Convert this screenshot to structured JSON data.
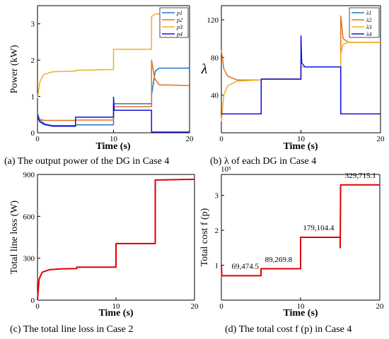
{
  "chart_data": [
    {
      "id": "a",
      "type": "line",
      "caption": "(a) The output power of the DG in Case 4",
      "xlabel": "Time (s)",
      "ylabel": "Power (kW)",
      "xlim": [
        0,
        20
      ],
      "ylim": [
        0,
        3.5
      ],
      "xticks": [
        0,
        10,
        20
      ],
      "yticks": [
        0,
        1,
        2,
        3
      ],
      "legend": {
        "position": "top-right",
        "labels": [
          "p1",
          "p2",
          "p3",
          "p4"
        ]
      },
      "series": [
        {
          "name": "p1",
          "color": "#1f77d0",
          "points": [
            [
              0,
              0.55
            ],
            [
              0.3,
              0.35
            ],
            [
              1,
              0.24
            ],
            [
              2,
              0.2
            ],
            [
              5,
              0.2
            ],
            [
              5,
              0.22
            ],
            [
              10,
              0.22
            ],
            [
              10,
              0.8
            ],
            [
              15,
              0.8
            ],
            [
              15,
              1.05
            ],
            [
              15.5,
              1.7
            ],
            [
              16,
              1.78
            ],
            [
              20,
              1.78
            ]
          ]
        },
        {
          "name": "p2",
          "color": "#e07020",
          "points": [
            [
              0,
              0.45
            ],
            [
              0.4,
              0.36
            ],
            [
              1,
              0.34
            ],
            [
              5,
              0.34
            ],
            [
              5,
              0.35
            ],
            [
              10,
              0.35
            ],
            [
              10,
              0.72
            ],
            [
              15,
              0.72
            ],
            [
              15,
              2.0
            ],
            [
              15.4,
              1.5
            ],
            [
              16,
              1.32
            ],
            [
              20,
              1.3
            ]
          ]
        },
        {
          "name": "p3",
          "color": "#f0b020",
          "points": [
            [
              0,
              0.95
            ],
            [
              0.3,
              1.4
            ],
            [
              0.8,
              1.6
            ],
            [
              2,
              1.68
            ],
            [
              5,
              1.7
            ],
            [
              5,
              1.72
            ],
            [
              10,
              1.74
            ],
            [
              10,
              2.3
            ],
            [
              15,
              2.3
            ],
            [
              15,
              3.2
            ],
            [
              15.5,
              3.27
            ],
            [
              20,
              3.27
            ]
          ]
        },
        {
          "name": "p4",
          "color": "#1010e0",
          "points": [
            [
              0,
              0.45
            ],
            [
              0.3,
              0.3
            ],
            [
              1,
              0.22
            ],
            [
              2,
              0.18
            ],
            [
              5,
              0.18
            ],
            [
              5,
              0.43
            ],
            [
              10,
              0.43
            ],
            [
              10,
              0.98
            ],
            [
              10.1,
              0.62
            ],
            [
              15,
              0.62
            ],
            [
              15,
              0.02
            ],
            [
              20,
              0.02
            ]
          ]
        }
      ]
    },
    {
      "id": "b",
      "type": "line",
      "caption": "(b)  λ of each DG in Case 4",
      "xlabel": "Time (s)",
      "ylabel": "λ",
      "xlim": [
        0,
        20
      ],
      "ylim": [
        0,
        135
      ],
      "xticks": [
        0,
        10,
        20
      ],
      "yticks": [
        40,
        80,
        120
      ],
      "legend": {
        "position": "top-right",
        "labels": [
          "λ1",
          "λ2",
          "λ3",
          "λ4"
        ]
      },
      "series": [
        {
          "name": "λ1",
          "color": "#1f77d0",
          "points": [
            [
              0,
              20
            ],
            [
              5,
              20
            ],
            [
              5,
              57
            ],
            [
              10,
              57
            ],
            [
              10,
              70
            ],
            [
              15,
              70
            ],
            [
              15,
              20
            ],
            [
              20,
              20
            ]
          ]
        },
        {
          "name": "λ2",
          "color": "#e07020",
          "points": [
            [
              0,
              88
            ],
            [
              0.3,
              68
            ],
            [
              0.8,
              60
            ],
            [
              2,
              56
            ],
            [
              5,
              56
            ],
            [
              5,
              57
            ],
            [
              10,
              57
            ],
            [
              10,
              70
            ],
            [
              15,
              70
            ],
            [
              15,
              124
            ],
            [
              15.3,
              100
            ],
            [
              16,
              96
            ],
            [
              20,
              96
            ]
          ]
        },
        {
          "name": "λ3",
          "color": "#f0b020",
          "points": [
            [
              0,
              12
            ],
            [
              0.3,
              40
            ],
            [
              0.8,
              50
            ],
            [
              2,
              55
            ],
            [
              5,
              56
            ],
            [
              5,
              57
            ],
            [
              10,
              57
            ],
            [
              10,
              70
            ],
            [
              15,
              70
            ],
            [
              15,
              84
            ],
            [
              15.3,
              94
            ],
            [
              16,
              96
            ],
            [
              20,
              96
            ]
          ]
        },
        {
          "name": "λ4",
          "color": "#1010e0",
          "points": [
            [
              0,
              20
            ],
            [
              5,
              20
            ],
            [
              5,
              57
            ],
            [
              10,
              57
            ],
            [
              10,
              103
            ],
            [
              10.1,
              74
            ],
            [
              10.5,
              70
            ],
            [
              15,
              70
            ],
            [
              15,
              20
            ],
            [
              20,
              20
            ]
          ]
        }
      ]
    },
    {
      "id": "c",
      "type": "line",
      "caption": "(c) The total line loss in Case 2",
      "xlabel": "Time (s)",
      "ylabel": "Total line loss (W)",
      "xlim": [
        0,
        20
      ],
      "ylim": [
        0,
        900
      ],
      "xticks": [
        0,
        10,
        20
      ],
      "yticks": [
        0,
        300,
        600,
        900
      ],
      "series": [
        {
          "name": "",
          "color": "#e00000",
          "points": [
            [
              0,
              0
            ],
            [
              0.2,
              150
            ],
            [
              0.6,
              200
            ],
            [
              1.5,
              218
            ],
            [
              3,
              224
            ],
            [
              5,
              226
            ],
            [
              5,
              236
            ],
            [
              10,
              236
            ],
            [
              10,
              405
            ],
            [
              15,
              405
            ],
            [
              15,
              860
            ],
            [
              20,
              865
            ]
          ]
        }
      ]
    },
    {
      "id": "d",
      "type": "line",
      "caption": "(d) The total cost f (p)  in Case 4",
      "xlabel": "Time (s)",
      "ylabel": "Total cost f (p)",
      "exponent": "10⁵",
      "xlim": [
        0,
        20
      ],
      "ylim": [
        0,
        3.6
      ],
      "xticks": [
        0,
        10,
        20
      ],
      "yticks": [
        1,
        2,
        3
      ],
      "annotations": [
        "69,474.5",
        "89,269.8",
        "179,104.4",
        "329,715.1"
      ],
      "annotation_points": [
        [
          1.3,
          0.9
        ],
        [
          5.5,
          1.09
        ],
        [
          10.3,
          2.0
        ],
        [
          15.6,
          3.5
        ]
      ],
      "series": [
        {
          "name": "",
          "color": "#e00000",
          "points": [
            [
              0,
              1.0
            ],
            [
              0.05,
              0.7
            ],
            [
              5,
              0.7
            ],
            [
              5,
              0.9
            ],
            [
              10,
              0.9
            ],
            [
              10,
              1.8
            ],
            [
              15,
              1.8
            ],
            [
              15,
              1.5
            ],
            [
              15.05,
              3.3
            ],
            [
              20,
              3.3
            ]
          ]
        }
      ]
    }
  ]
}
